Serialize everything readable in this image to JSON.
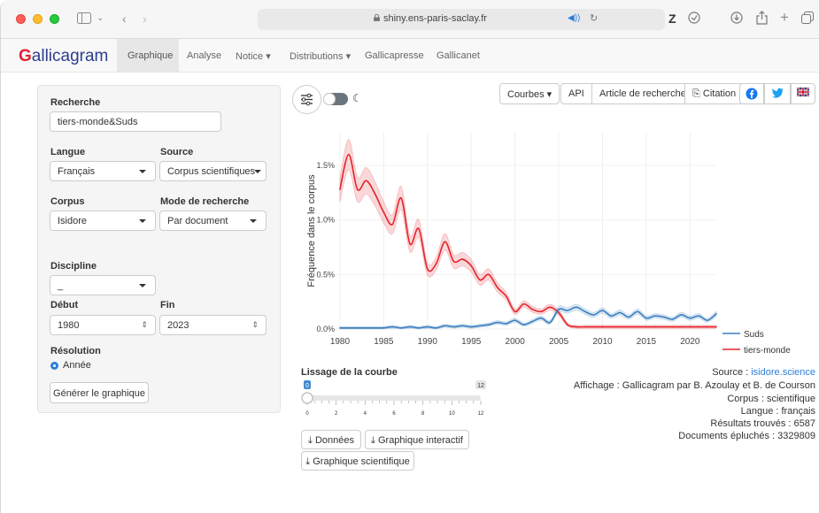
{
  "browser": {
    "url": "shiny.ens-paris-saclay.fr"
  },
  "navbar": {
    "brand_first": "G",
    "brand_rest": "allicagram",
    "items": [
      {
        "label": "Graphique"
      },
      {
        "label": "Analyse"
      },
      {
        "label": "Notice ▾"
      },
      {
        "label": "Distributions ▾"
      },
      {
        "label": "Gallicapresse"
      },
      {
        "label": "Gallicanet"
      }
    ]
  },
  "sidebar": {
    "search_label": "Recherche",
    "search_value": "tiers-monde&Suds",
    "langue_label": "Langue",
    "langue_value": "Français",
    "source_label": "Source",
    "source_value": "Corpus scientifiques",
    "corpus_label": "Corpus",
    "corpus_value": "Isidore",
    "mode_label": "Mode de recherche",
    "mode_value": "Par document",
    "discipline_label": "Discipline",
    "discipline_value": "_",
    "debut_label": "Début",
    "debut_value": "1980",
    "fin_label": "Fin",
    "fin_value": "2023",
    "resolution_label": "Résolution",
    "resolution_option": "Année",
    "generate_label": "Générer le graphique"
  },
  "toolbar_buttons": {
    "courbes": "Courbes ▾",
    "api": "API",
    "article": "Article de recherche",
    "citation": "Citation"
  },
  "slider": {
    "label": "Lissage de la courbe",
    "value": 0,
    "max": 12,
    "ticks": [
      "0",
      "2",
      "4",
      "6",
      "8",
      "10",
      "12"
    ]
  },
  "download_buttons": {
    "donnees": "Données",
    "interactif": "Graphique interactif",
    "scientifique": "Graphique scientifique"
  },
  "info": {
    "source_prefix": "Source : ",
    "source_link": "isidore.science",
    "affichage": "Affichage : Gallicagram par B. Azoulay et B. de Courson",
    "corpus": "Corpus : scientifique",
    "langue": "Langue : français",
    "resultats": "Résultats trouvés : 6587",
    "documents": "Documents épluchés : 3329809"
  },
  "colors": {
    "tiers_monde": "#e3242b",
    "suds": "#3a7ebf"
  },
  "chart_data": {
    "type": "line",
    "ylabel": "Fréquence dans le corpus",
    "x_ticks": [
      "1980",
      "1985",
      "1990",
      "1995",
      "2000",
      "2005",
      "2010",
      "2015",
      "2020"
    ],
    "y_ticks": [
      "0.0%",
      "0.5%",
      "1.0%",
      "1.5%"
    ],
    "xlim": [
      1979.5,
      2023
    ],
    "ylim": [
      0,
      1.8
    ],
    "legend_position": "bottom-right",
    "series": [
      {
        "name": "tiers-monde",
        "color": "#e3242b",
        "x": [
          1980,
          1981,
          1982,
          1983,
          1984,
          1985,
          1986,
          1987,
          1988,
          1989,
          1990,
          1991,
          1992,
          1993,
          1994,
          1995,
          1996,
          1997,
          1998,
          1999,
          2000,
          2001,
          2002,
          2003,
          2004,
          2005,
          2006,
          2007,
          2008,
          2009,
          2010,
          2011,
          2012,
          2013,
          2014,
          2015,
          2016,
          2017,
          2018,
          2019,
          2020,
          2021,
          2022,
          2023
        ],
        "values": [
          1.28,
          1.6,
          1.28,
          1.36,
          1.24,
          1.07,
          0.96,
          1.2,
          0.78,
          0.92,
          0.55,
          0.6,
          0.8,
          0.62,
          0.64,
          0.58,
          0.45,
          0.5,
          0.38,
          0.3,
          0.16,
          0.23,
          0.18,
          0.16,
          0.2,
          0.15,
          0.04,
          0.02,
          0.02,
          0.02,
          0.02,
          0.02,
          0.02,
          0.02,
          0.02,
          0.02,
          0.02,
          0.02,
          0.02,
          0.02,
          0.02,
          0.02,
          0.02,
          0.02
        ]
      },
      {
        "name": "Suds",
        "color": "#3a7ebf",
        "x": [
          1980,
          1981,
          1982,
          1983,
          1984,
          1985,
          1986,
          1987,
          1988,
          1989,
          1990,
          1991,
          1992,
          1993,
          1994,
          1995,
          1996,
          1997,
          1998,
          1999,
          2000,
          2001,
          2002,
          2003,
          2004,
          2005,
          2006,
          2007,
          2008,
          2009,
          2010,
          2011,
          2012,
          2013,
          2014,
          2015,
          2016,
          2017,
          2018,
          2019,
          2020,
          2021,
          2022,
          2023
        ],
        "values": [
          0.01,
          0.01,
          0.01,
          0.01,
          0.01,
          0.01,
          0.02,
          0.01,
          0.02,
          0.01,
          0.02,
          0.01,
          0.03,
          0.02,
          0.03,
          0.02,
          0.03,
          0.04,
          0.06,
          0.05,
          0.08,
          0.04,
          0.07,
          0.1,
          0.06,
          0.18,
          0.17,
          0.2,
          0.16,
          0.13,
          0.17,
          0.12,
          0.15,
          0.11,
          0.16,
          0.1,
          0.12,
          0.11,
          0.09,
          0.13,
          0.1,
          0.12,
          0.08,
          0.14
        ]
      }
    ]
  }
}
